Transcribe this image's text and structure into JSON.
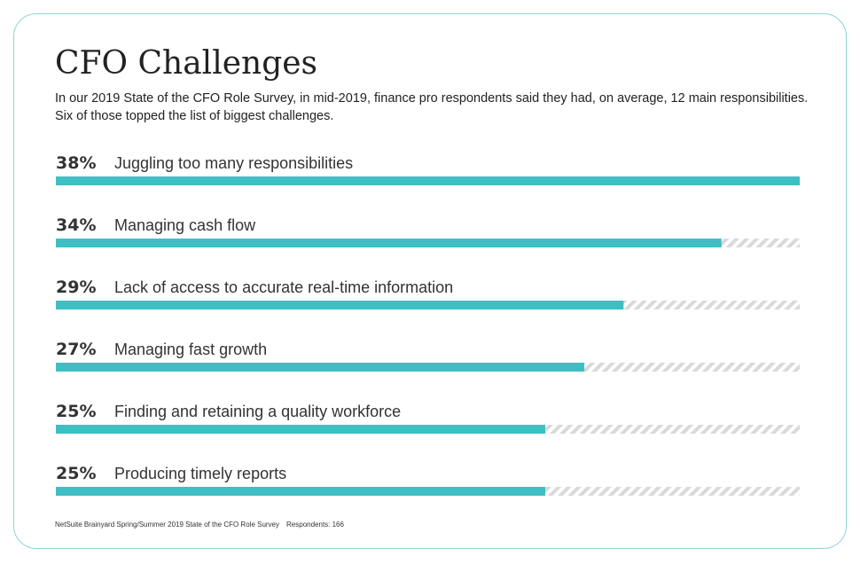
{
  "header": {
    "title": "CFO Challenges",
    "subtitle_line1": "In our 2019 State of the CFO Role Survey, in mid-2019, finance pro respondents said they had, on average, 12 main responsibilities.",
    "subtitle_line2": "Six of those topped the list of biggest challenges."
  },
  "footer": {
    "source": "NetSuite Brainyard Spring/Summer 2019 State of the CFO Role Survey",
    "respondents": "Respondents: 166"
  },
  "colors": {
    "bar": "#3dbfc4",
    "track_stripe": "#d9d9d9",
    "border": "#8fd3d6"
  },
  "chart_data": {
    "type": "bar",
    "orientation": "horizontal",
    "title": "CFO Challenges",
    "categories": [
      "Juggling too many responsibilities",
      "Managing cash flow",
      "Lack of access to accurate real-time information",
      "Managing fast growth",
      "Finding and retaining a quality workforce",
      "Producing timely reports"
    ],
    "values": [
      38,
      34,
      29,
      27,
      25,
      25
    ],
    "value_labels": [
      "38%",
      "34%",
      "29%",
      "27%",
      "25%",
      "25%"
    ],
    "unit": "%",
    "xlim": [
      0,
      38
    ],
    "grid": false,
    "legend": "none"
  }
}
